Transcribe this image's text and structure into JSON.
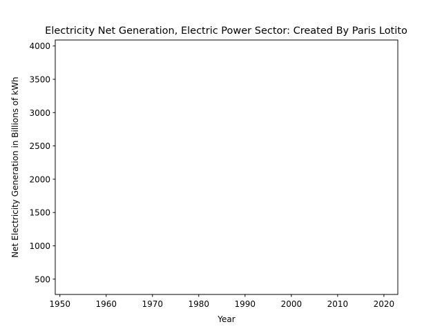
{
  "chart_data": {
    "type": "line",
    "title": "Electricity Net Generation, Electric Power Sector: Created By Paris Lotito",
    "xlabel": "Year",
    "ylabel": "Net Electricity Generation in Billions of kWh",
    "xlim": [
      1949,
      2023
    ],
    "ylim": [
      270,
      4090
    ],
    "x_ticks": [
      1950,
      1960,
      1970,
      1980,
      1990,
      2000,
      2010,
      2020
    ],
    "y_ticks": [
      500,
      1000,
      1500,
      2000,
      2500,
      3000,
      3500,
      4000
    ],
    "grid": false,
    "legend": "none",
    "series": []
  }
}
